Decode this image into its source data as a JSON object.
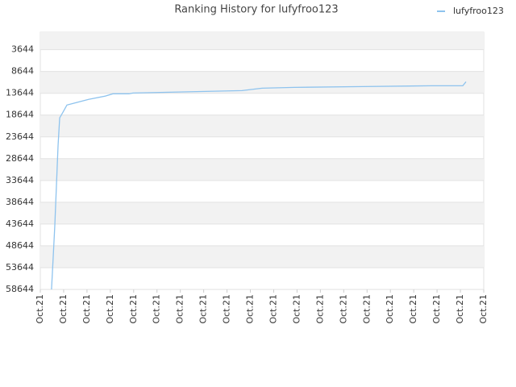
{
  "chart_data": {
    "type": "line",
    "title": "Ranking History for lufyfroo123",
    "x": [
      0.48,
      0.55,
      0.62,
      0.69,
      0.76,
      0.83,
      0.97,
      1.14,
      2.07,
      2.76,
      3.11,
      3.8,
      3.97,
      5.53,
      7.08,
      8.64,
      9.5,
      10.88,
      13.82,
      16.75,
      18.1,
      18.24
    ],
    "series": [
      {
        "name": "lufyfroo123",
        "color": "#8ec3ee",
        "values": [
          58644,
          51473,
          44115,
          34917,
          25719,
          19280,
          17993,
          16337,
          15050,
          14314,
          13762,
          13762,
          13578,
          13394,
          13210,
          13026,
          12474,
          12290,
          12106,
          11922,
          11922,
          11003
        ]
      }
    ],
    "xlim": [
      0,
      19
    ],
    "xticks": [
      {
        "value": 0,
        "label": "Oct.21"
      },
      {
        "value": 1,
        "label": "Oct.21"
      },
      {
        "value": 2,
        "label": "Oct.21"
      },
      {
        "value": 3,
        "label": "Oct.21"
      },
      {
        "value": 4,
        "label": "Oct.21"
      },
      {
        "value": 5,
        "label": "Oct.21"
      },
      {
        "value": 6,
        "label": "Oct.21"
      },
      {
        "value": 7,
        "label": "Oct.21"
      },
      {
        "value": 8,
        "label": "Oct.21"
      },
      {
        "value": 9,
        "label": "Oct.21"
      },
      {
        "value": 10,
        "label": "Oct.21"
      },
      {
        "value": 11,
        "label": "Oct.21"
      },
      {
        "value": 12,
        "label": "Oct.21"
      },
      {
        "value": 13,
        "label": "Oct.21"
      },
      {
        "value": 14,
        "label": "Oct.21"
      },
      {
        "value": 15,
        "label": "Oct.21"
      },
      {
        "value": 16,
        "label": "Oct.21"
      },
      {
        "value": 17,
        "label": "Oct.21"
      },
      {
        "value": 18,
        "label": "Oct.21"
      },
      {
        "value": 19,
        "label": "Oct.21"
      }
    ],
    "ylim": [
      58644,
      -356
    ],
    "yticks": [
      3644,
      8644,
      13644,
      18644,
      23644,
      28644,
      33644,
      38644,
      43644,
      48644,
      53644,
      58644
    ],
    "grid": true,
    "legend": "top-right"
  }
}
